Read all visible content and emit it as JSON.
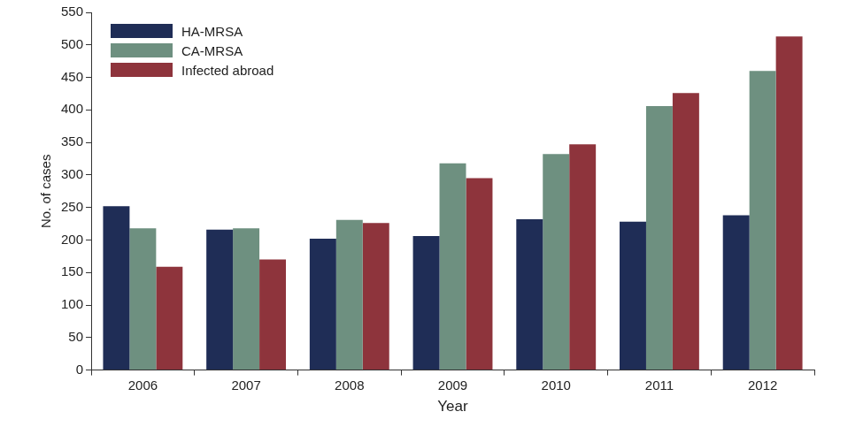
{
  "chart_data": {
    "type": "bar",
    "x_label": "Year",
    "y_label": "No. of cases",
    "categories": [
      "2006",
      "2007",
      "2008",
      "2009",
      "2010",
      "2011",
      "2012"
    ],
    "series": [
      {
        "name": "HA-MRSA",
        "color": "#1f2d56",
        "values": [
          252,
          216,
          202,
          206,
          232,
          228,
          238
        ]
      },
      {
        "name": "CA-MRSA",
        "color": "#6e9080",
        "values": [
          218,
          218,
          231,
          318,
          332,
          406,
          460
        ]
      },
      {
        "name": "Infected abroad",
        "color": "#8e343c",
        "values": [
          159,
          170,
          226,
          295,
          347,
          426,
          513
        ]
      }
    ],
    "ylim": [
      0,
      550
    ],
    "yticks": [
      0,
      50,
      100,
      150,
      200,
      250,
      300,
      350,
      400,
      450,
      500,
      550
    ],
    "grid": false,
    "legend": "upper left"
  }
}
